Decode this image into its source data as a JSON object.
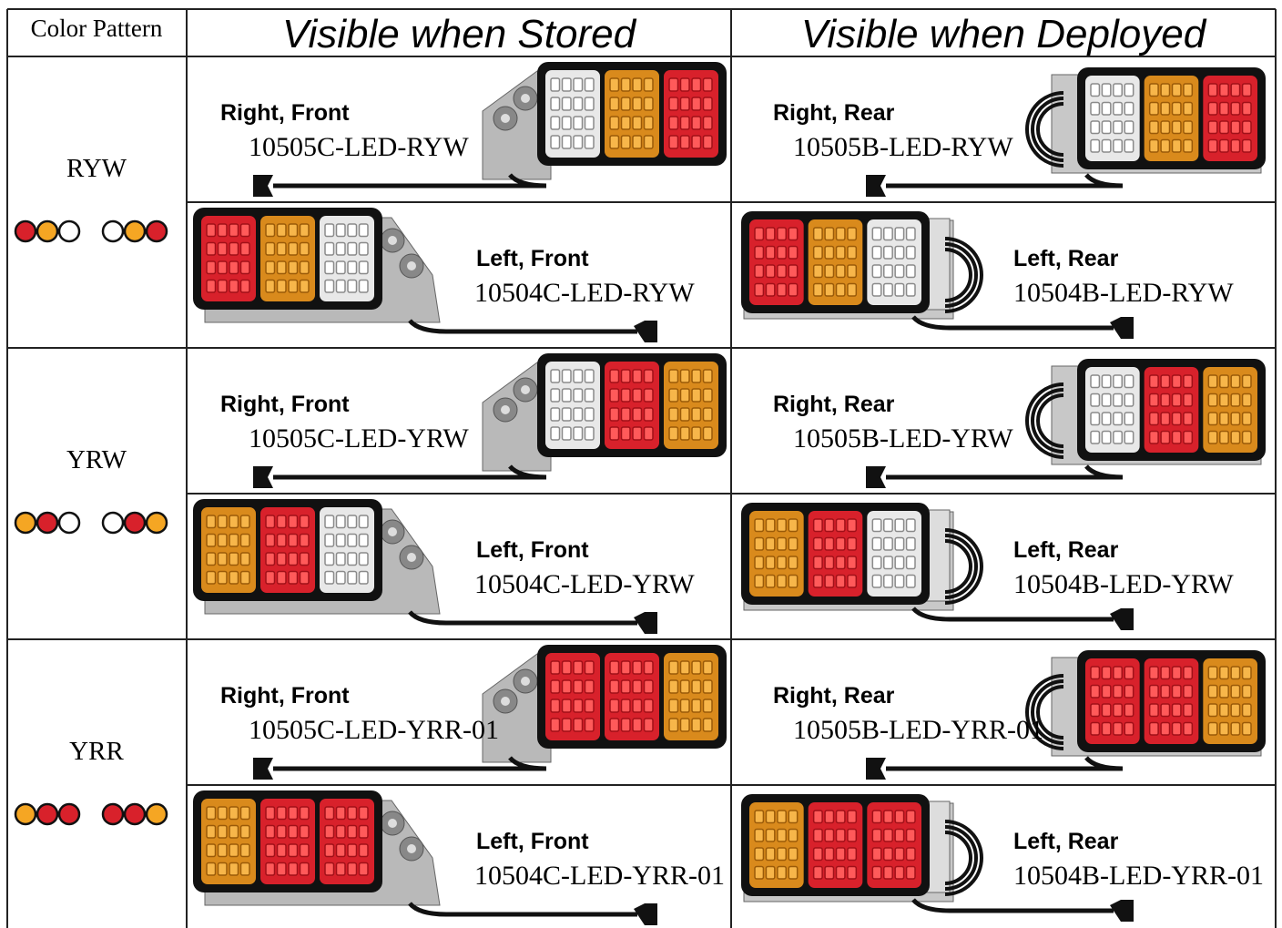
{
  "header": [
    "Color Pattern",
    "Visible when Stored",
    "Visible when Deployed"
  ],
  "groups": [
    {
      "pattern": "RYW",
      "rows": [
        [
          {
            "label": "Right, Front",
            "part": "10505C-LED-RYW"
          },
          {
            "label": "Right, Rear",
            "part": "10505B-LED-RYW"
          }
        ],
        [
          {
            "label": "Left, Front",
            "part": "10504C-LED-RYW"
          },
          {
            "label": "Left, Rear",
            "part": "10504B-LED-RYW"
          }
        ]
      ]
    },
    {
      "pattern": "YRW",
      "rows": [
        [
          {
            "label": "Right, Front",
            "part": "10505C-LED-YRW"
          },
          {
            "label": "Right, Rear",
            "part": "10505B-LED-YRW"
          }
        ],
        [
          {
            "label": "Left, Front",
            "part": "10504C-LED-YRW"
          },
          {
            "label": "Left, Rear",
            "part": "10504B-LED-YRW"
          }
        ]
      ]
    },
    {
      "pattern": "YRR",
      "rows": [
        [
          {
            "label": "Right, Front",
            "part": "10505C-LED-YRR-01"
          },
          {
            "label": "Right, Rear",
            "part": "10505B-LED-YRR-01"
          }
        ],
        [
          {
            "label": "Left, Front",
            "part": "10504C-LED-YRR-01"
          },
          {
            "label": "Left, Rear",
            "part": "10504B-LED-YRR-01"
          }
        ]
      ]
    }
  ]
}
